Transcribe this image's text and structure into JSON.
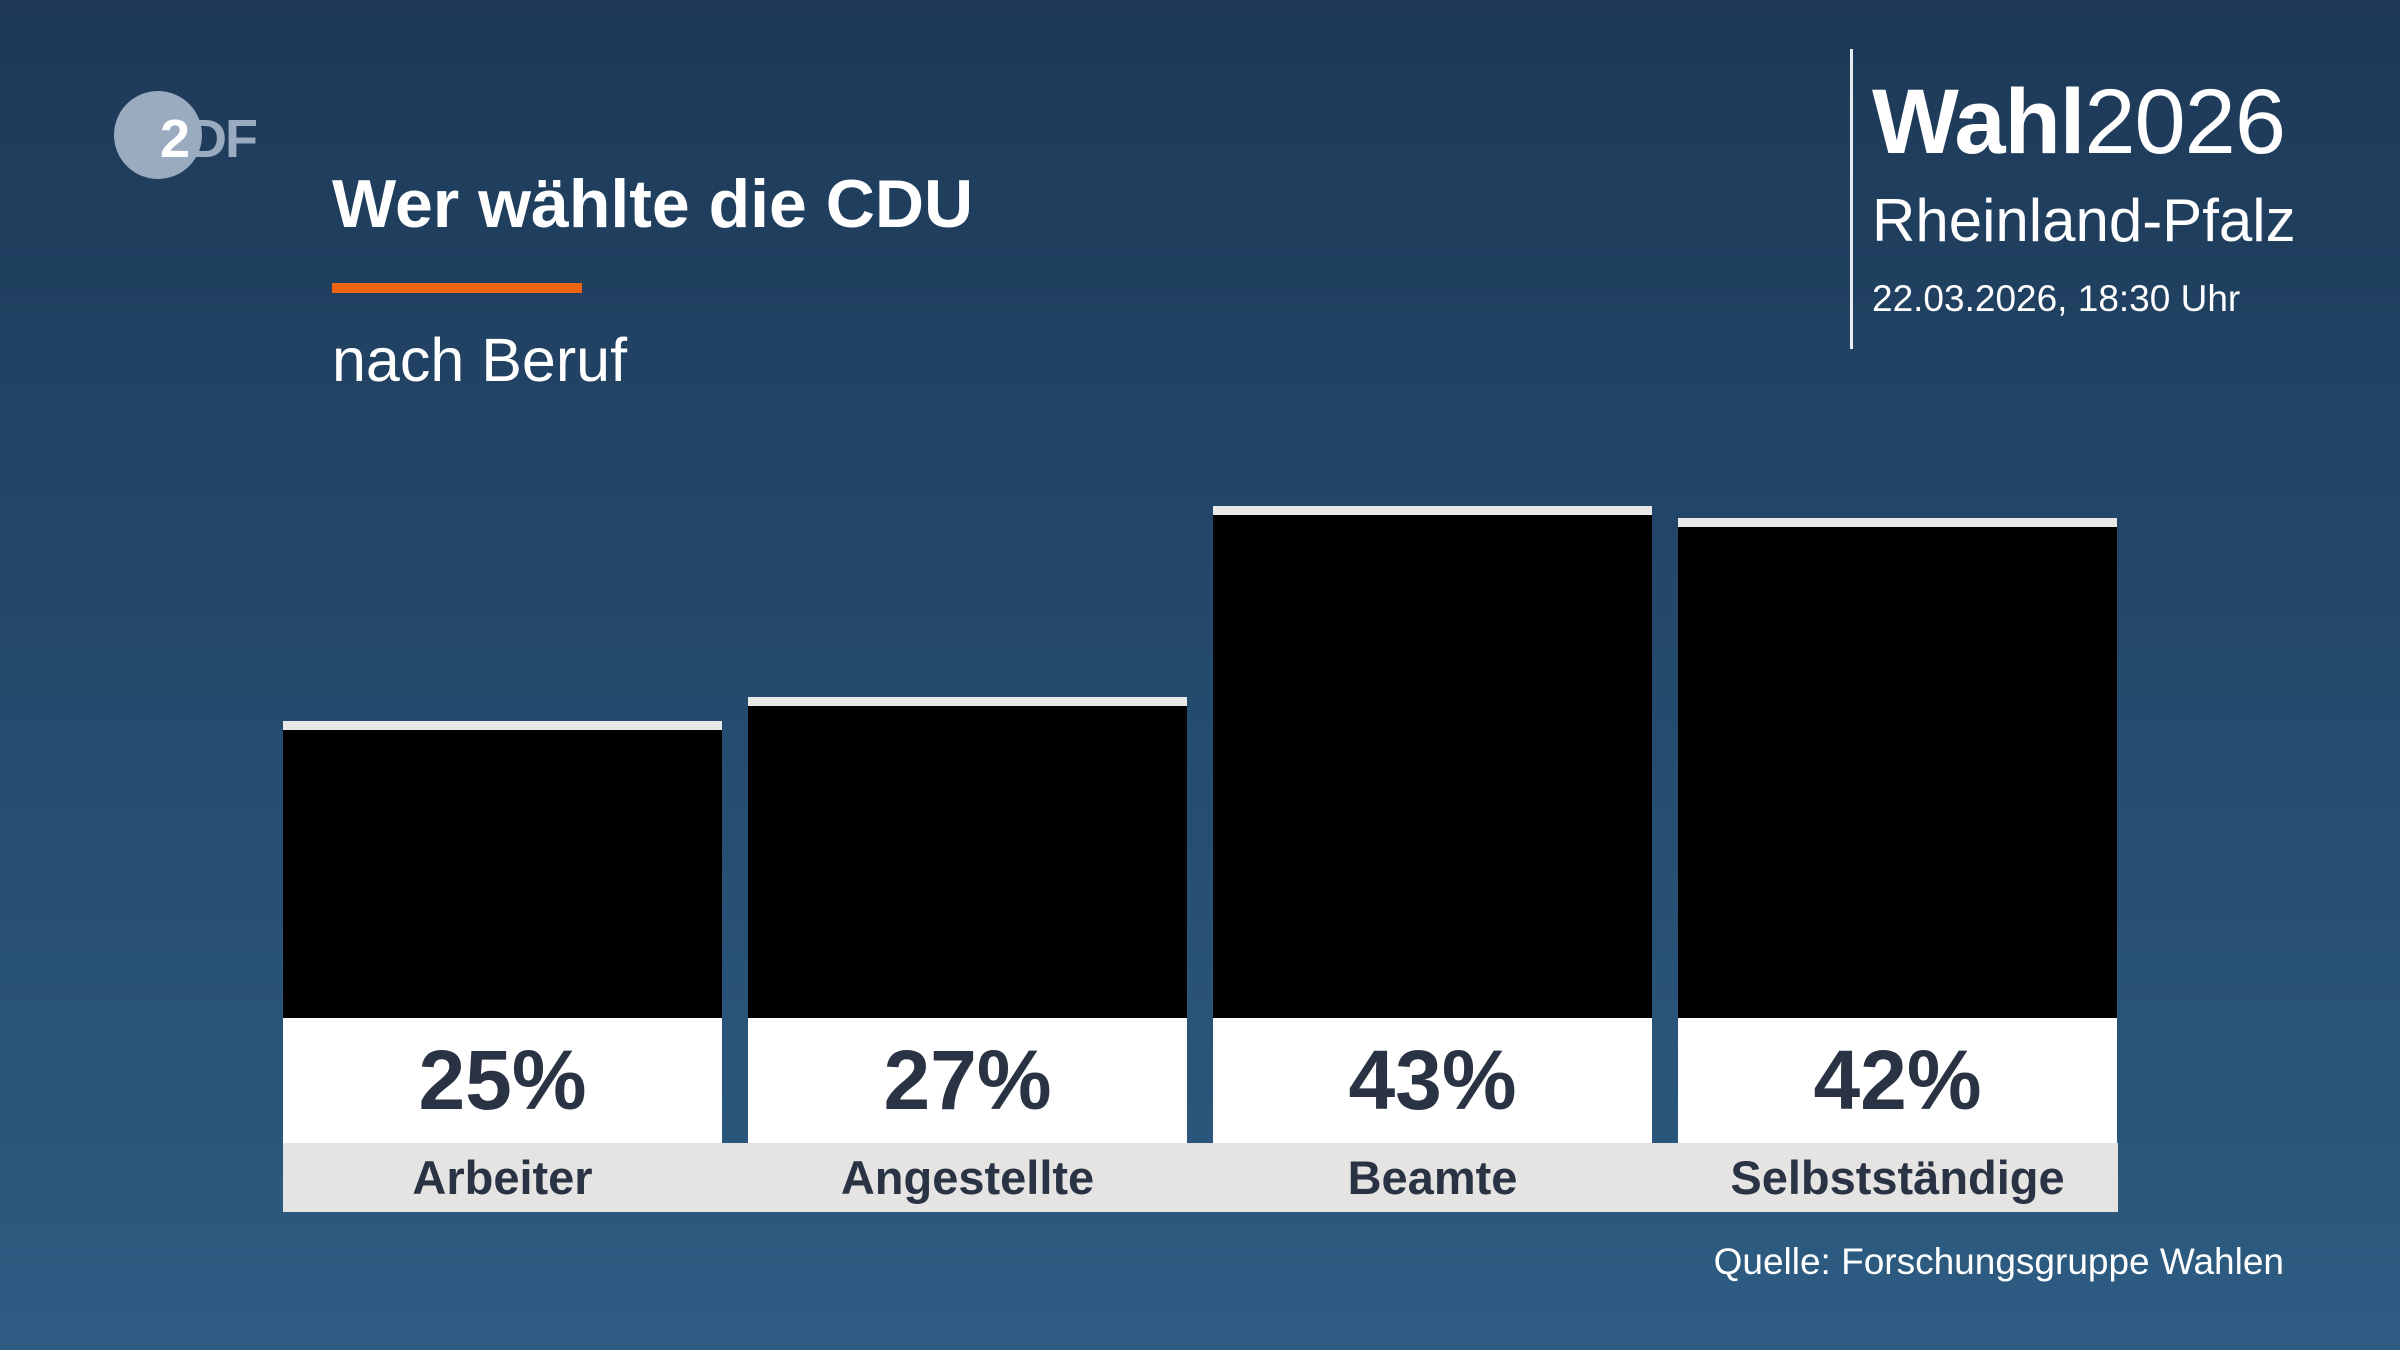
{
  "header": {
    "logo_text": "2DF",
    "title": "Wer wählte die CDU",
    "subtitle": "nach Beruf",
    "brand_bold": "Wahl",
    "brand_year": "2026",
    "region": "Rheinland-Pfalz",
    "datetime": "22.03.2026, 18:30 Uhr"
  },
  "colors": {
    "accent": "#f06414",
    "bar": "#000000",
    "text_dark": "#2a3344"
  },
  "chart_data": {
    "type": "bar",
    "title": "Wer wählte die CDU",
    "subtitle": "nach Beruf",
    "categories": [
      "Arbeiter",
      "Angestellte",
      "Beamte",
      "Selbstständige"
    ],
    "values": [
      25,
      27,
      43,
      42
    ],
    "value_labels": [
      "25%",
      "27%",
      "43%",
      "42%"
    ],
    "unit": "%",
    "grid": false
  },
  "footer": {
    "source": "Quelle: Forschungsgruppe Wahlen"
  }
}
